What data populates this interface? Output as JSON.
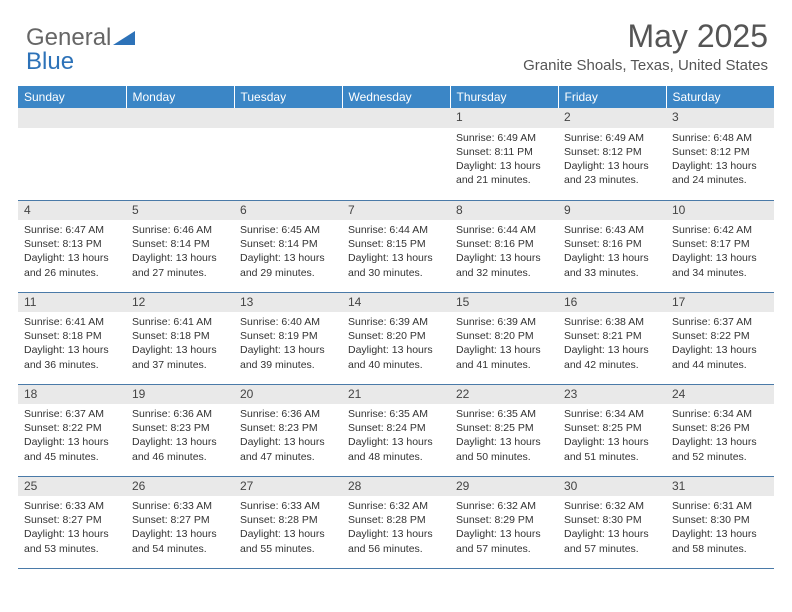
{
  "brand": {
    "part1": "General",
    "part2": "Blue"
  },
  "title": "May 2025",
  "location": "Granite Shoals, Texas, United States",
  "colors": {
    "header_bg": "#3b86c6",
    "header_text": "#ffffff",
    "daynum_bg": "#e9e9e9",
    "border": "#4a7aa8",
    "brand_gray": "#666666",
    "brand_blue": "#2d72b8",
    "text": "#333333"
  },
  "day_headers": [
    "Sunday",
    "Monday",
    "Tuesday",
    "Wednesday",
    "Thursday",
    "Friday",
    "Saturday"
  ],
  "weeks": [
    [
      {
        "n": "",
        "sr": "",
        "ss": "",
        "dl": ""
      },
      {
        "n": "",
        "sr": "",
        "ss": "",
        "dl": ""
      },
      {
        "n": "",
        "sr": "",
        "ss": "",
        "dl": ""
      },
      {
        "n": "",
        "sr": "",
        "ss": "",
        "dl": ""
      },
      {
        "n": "1",
        "sr": "6:49 AM",
        "ss": "8:11 PM",
        "dl": "13 hours and 21 minutes."
      },
      {
        "n": "2",
        "sr": "6:49 AM",
        "ss": "8:12 PM",
        "dl": "13 hours and 23 minutes."
      },
      {
        "n": "3",
        "sr": "6:48 AM",
        "ss": "8:12 PM",
        "dl": "13 hours and 24 minutes."
      }
    ],
    [
      {
        "n": "4",
        "sr": "6:47 AM",
        "ss": "8:13 PM",
        "dl": "13 hours and 26 minutes."
      },
      {
        "n": "5",
        "sr": "6:46 AM",
        "ss": "8:14 PM",
        "dl": "13 hours and 27 minutes."
      },
      {
        "n": "6",
        "sr": "6:45 AM",
        "ss": "8:14 PM",
        "dl": "13 hours and 29 minutes."
      },
      {
        "n": "7",
        "sr": "6:44 AM",
        "ss": "8:15 PM",
        "dl": "13 hours and 30 minutes."
      },
      {
        "n": "8",
        "sr": "6:44 AM",
        "ss": "8:16 PM",
        "dl": "13 hours and 32 minutes."
      },
      {
        "n": "9",
        "sr": "6:43 AM",
        "ss": "8:16 PM",
        "dl": "13 hours and 33 minutes."
      },
      {
        "n": "10",
        "sr": "6:42 AM",
        "ss": "8:17 PM",
        "dl": "13 hours and 34 minutes."
      }
    ],
    [
      {
        "n": "11",
        "sr": "6:41 AM",
        "ss": "8:18 PM",
        "dl": "13 hours and 36 minutes."
      },
      {
        "n": "12",
        "sr": "6:41 AM",
        "ss": "8:18 PM",
        "dl": "13 hours and 37 minutes."
      },
      {
        "n": "13",
        "sr": "6:40 AM",
        "ss": "8:19 PM",
        "dl": "13 hours and 39 minutes."
      },
      {
        "n": "14",
        "sr": "6:39 AM",
        "ss": "8:20 PM",
        "dl": "13 hours and 40 minutes."
      },
      {
        "n": "15",
        "sr": "6:39 AM",
        "ss": "8:20 PM",
        "dl": "13 hours and 41 minutes."
      },
      {
        "n": "16",
        "sr": "6:38 AM",
        "ss": "8:21 PM",
        "dl": "13 hours and 42 minutes."
      },
      {
        "n": "17",
        "sr": "6:37 AM",
        "ss": "8:22 PM",
        "dl": "13 hours and 44 minutes."
      }
    ],
    [
      {
        "n": "18",
        "sr": "6:37 AM",
        "ss": "8:22 PM",
        "dl": "13 hours and 45 minutes."
      },
      {
        "n": "19",
        "sr": "6:36 AM",
        "ss": "8:23 PM",
        "dl": "13 hours and 46 minutes."
      },
      {
        "n": "20",
        "sr": "6:36 AM",
        "ss": "8:23 PM",
        "dl": "13 hours and 47 minutes."
      },
      {
        "n": "21",
        "sr": "6:35 AM",
        "ss": "8:24 PM",
        "dl": "13 hours and 48 minutes."
      },
      {
        "n": "22",
        "sr": "6:35 AM",
        "ss": "8:25 PM",
        "dl": "13 hours and 50 minutes."
      },
      {
        "n": "23",
        "sr": "6:34 AM",
        "ss": "8:25 PM",
        "dl": "13 hours and 51 minutes."
      },
      {
        "n": "24",
        "sr": "6:34 AM",
        "ss": "8:26 PM",
        "dl": "13 hours and 52 minutes."
      }
    ],
    [
      {
        "n": "25",
        "sr": "6:33 AM",
        "ss": "8:27 PM",
        "dl": "13 hours and 53 minutes."
      },
      {
        "n": "26",
        "sr": "6:33 AM",
        "ss": "8:27 PM",
        "dl": "13 hours and 54 minutes."
      },
      {
        "n": "27",
        "sr": "6:33 AM",
        "ss": "8:28 PM",
        "dl": "13 hours and 55 minutes."
      },
      {
        "n": "28",
        "sr": "6:32 AM",
        "ss": "8:28 PM",
        "dl": "13 hours and 56 minutes."
      },
      {
        "n": "29",
        "sr": "6:32 AM",
        "ss": "8:29 PM",
        "dl": "13 hours and 57 minutes."
      },
      {
        "n": "30",
        "sr": "6:32 AM",
        "ss": "8:30 PM",
        "dl": "13 hours and 57 minutes."
      },
      {
        "n": "31",
        "sr": "6:31 AM",
        "ss": "8:30 PM",
        "dl": "13 hours and 58 minutes."
      }
    ]
  ],
  "labels": {
    "sunrise": "Sunrise:",
    "sunset": "Sunset:",
    "daylight": "Daylight:"
  }
}
